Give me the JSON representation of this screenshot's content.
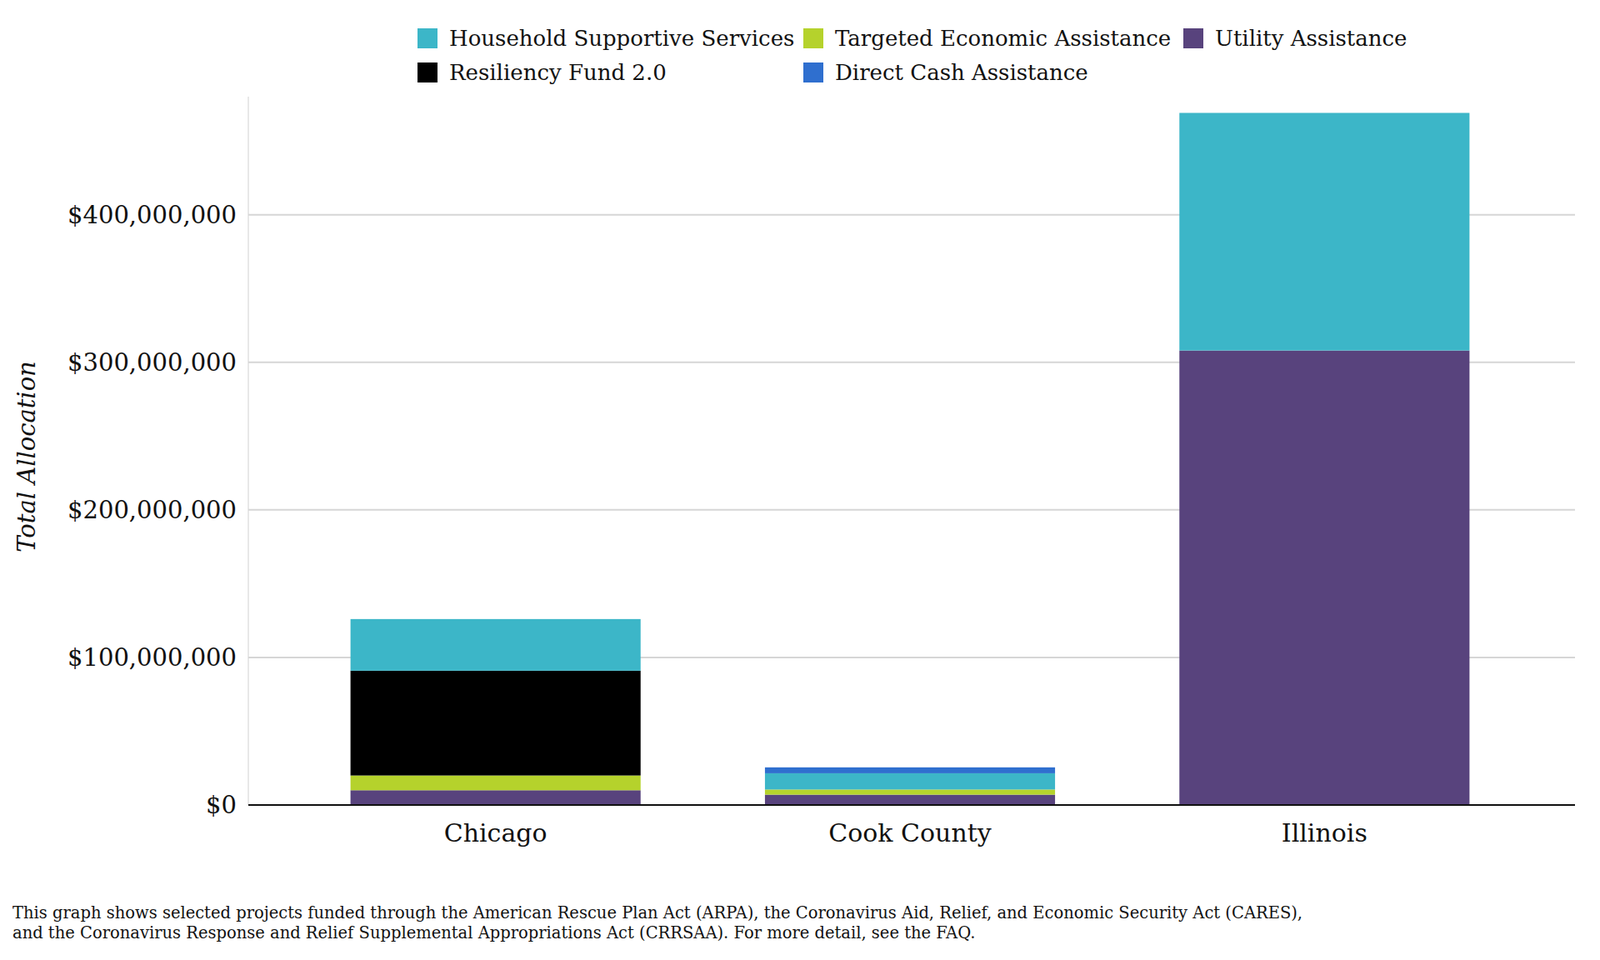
{
  "chart_data": {
    "type": "bar",
    "stacked": true,
    "grid": true,
    "legend": "top",
    "y_label": "Total Allocation",
    "categories": [
      "Chicago",
      "Cook County",
      "Illinois"
    ],
    "series": [
      {
        "name": "Utility Assistance",
        "color": "#58437d",
        "values": [
          10000000,
          7000000,
          308000000
        ]
      },
      {
        "name": "Targeted Economic Assistance",
        "color": "#b5d22c",
        "values": [
          10000000,
          3500000,
          0
        ]
      },
      {
        "name": "Resiliency Fund 2.0",
        "color": "#000000",
        "values": [
          71000000,
          0,
          0
        ]
      },
      {
        "name": "Household Supportive Services",
        "color": "#3cb6c8",
        "values": [
          35000000,
          11000000,
          161000000
        ]
      },
      {
        "name": "Direct Cash Assistance",
        "color": "#2f6fcf",
        "values": [
          0,
          4000000,
          0
        ]
      }
    ],
    "ylim": [
      0,
      480000000
    ],
    "yticks": [
      {
        "value": 0,
        "label": "$0"
      },
      {
        "value": 100000000,
        "label": "$100,000,000"
      },
      {
        "value": 200000000,
        "label": "$200,000,000"
      },
      {
        "value": 300000000,
        "label": "$300,000,000"
      },
      {
        "value": 400000000,
        "label": "$400,000,000"
      }
    ],
    "annotations": [
      "This graph shows selected projects funded through the American Rescue Plan Act (ARPA), the Coronavirus Aid, Relief, and Economic Security Act (CARES),",
      "and the Coronavirus Response and Relief Supplemental Appropriations Act (CRRSAA). For more detail, see the FAQ."
    ]
  }
}
